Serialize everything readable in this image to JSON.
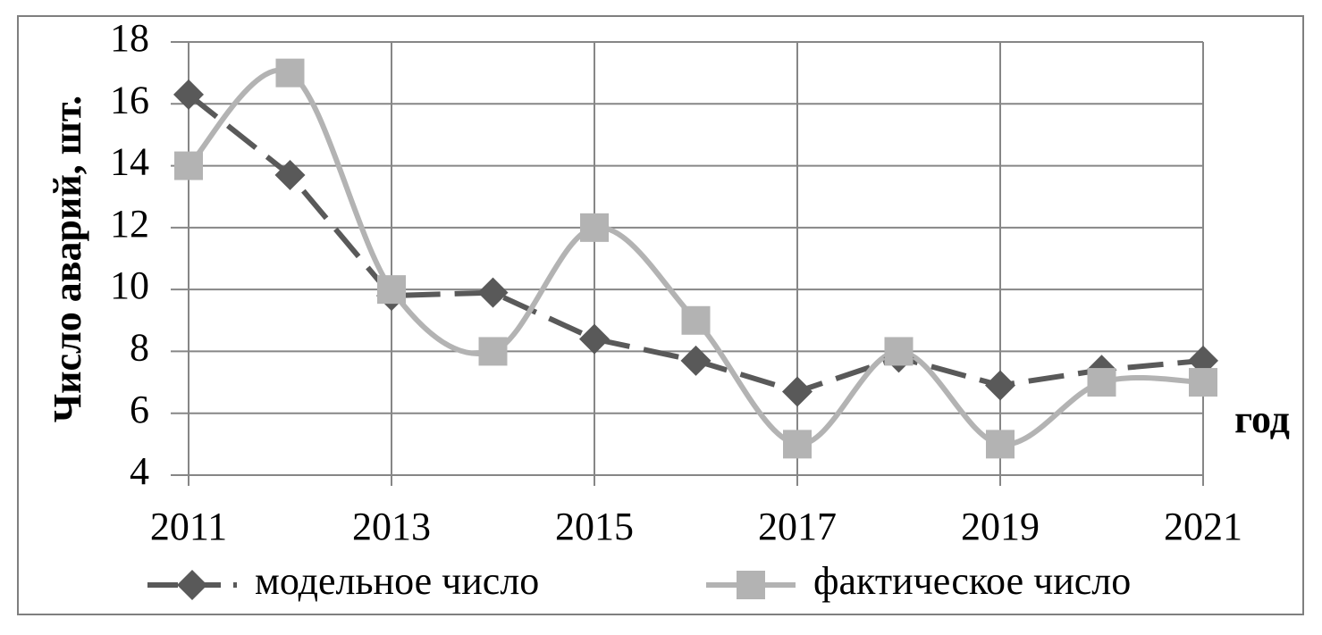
{
  "chart_data": {
    "type": "line",
    "y_label": "Число аварий, шт.",
    "x_label": "год",
    "x": [
      2011,
      2012,
      2013,
      2014,
      2015,
      2016,
      2017,
      2018,
      2019,
      2020,
      2021
    ],
    "series": [
      {
        "name": "модельное число",
        "color": "#595959",
        "marker": "diamond",
        "line_style": "dashed",
        "smooth": false,
        "values": [
          16.3,
          13.7,
          9.8,
          9.9,
          8.4,
          7.7,
          6.7,
          7.8,
          6.9,
          7.4,
          7.7
        ]
      },
      {
        "name": "фактическое число",
        "color": "#b3b3b3",
        "marker": "square",
        "line_style": "solid",
        "smooth": true,
        "values": [
          14,
          17,
          10,
          8,
          12,
          9,
          5,
          8,
          5,
          7,
          7
        ]
      }
    ],
    "xlim": [
      2011,
      2021
    ],
    "xticks": [
      2011,
      2013,
      2015,
      2017,
      2019,
      2021
    ],
    "ylim": [
      4,
      18
    ],
    "yticks": [
      4,
      6,
      8,
      10,
      12,
      14,
      16,
      18
    ],
    "grid": true,
    "legend": "bottom"
  }
}
